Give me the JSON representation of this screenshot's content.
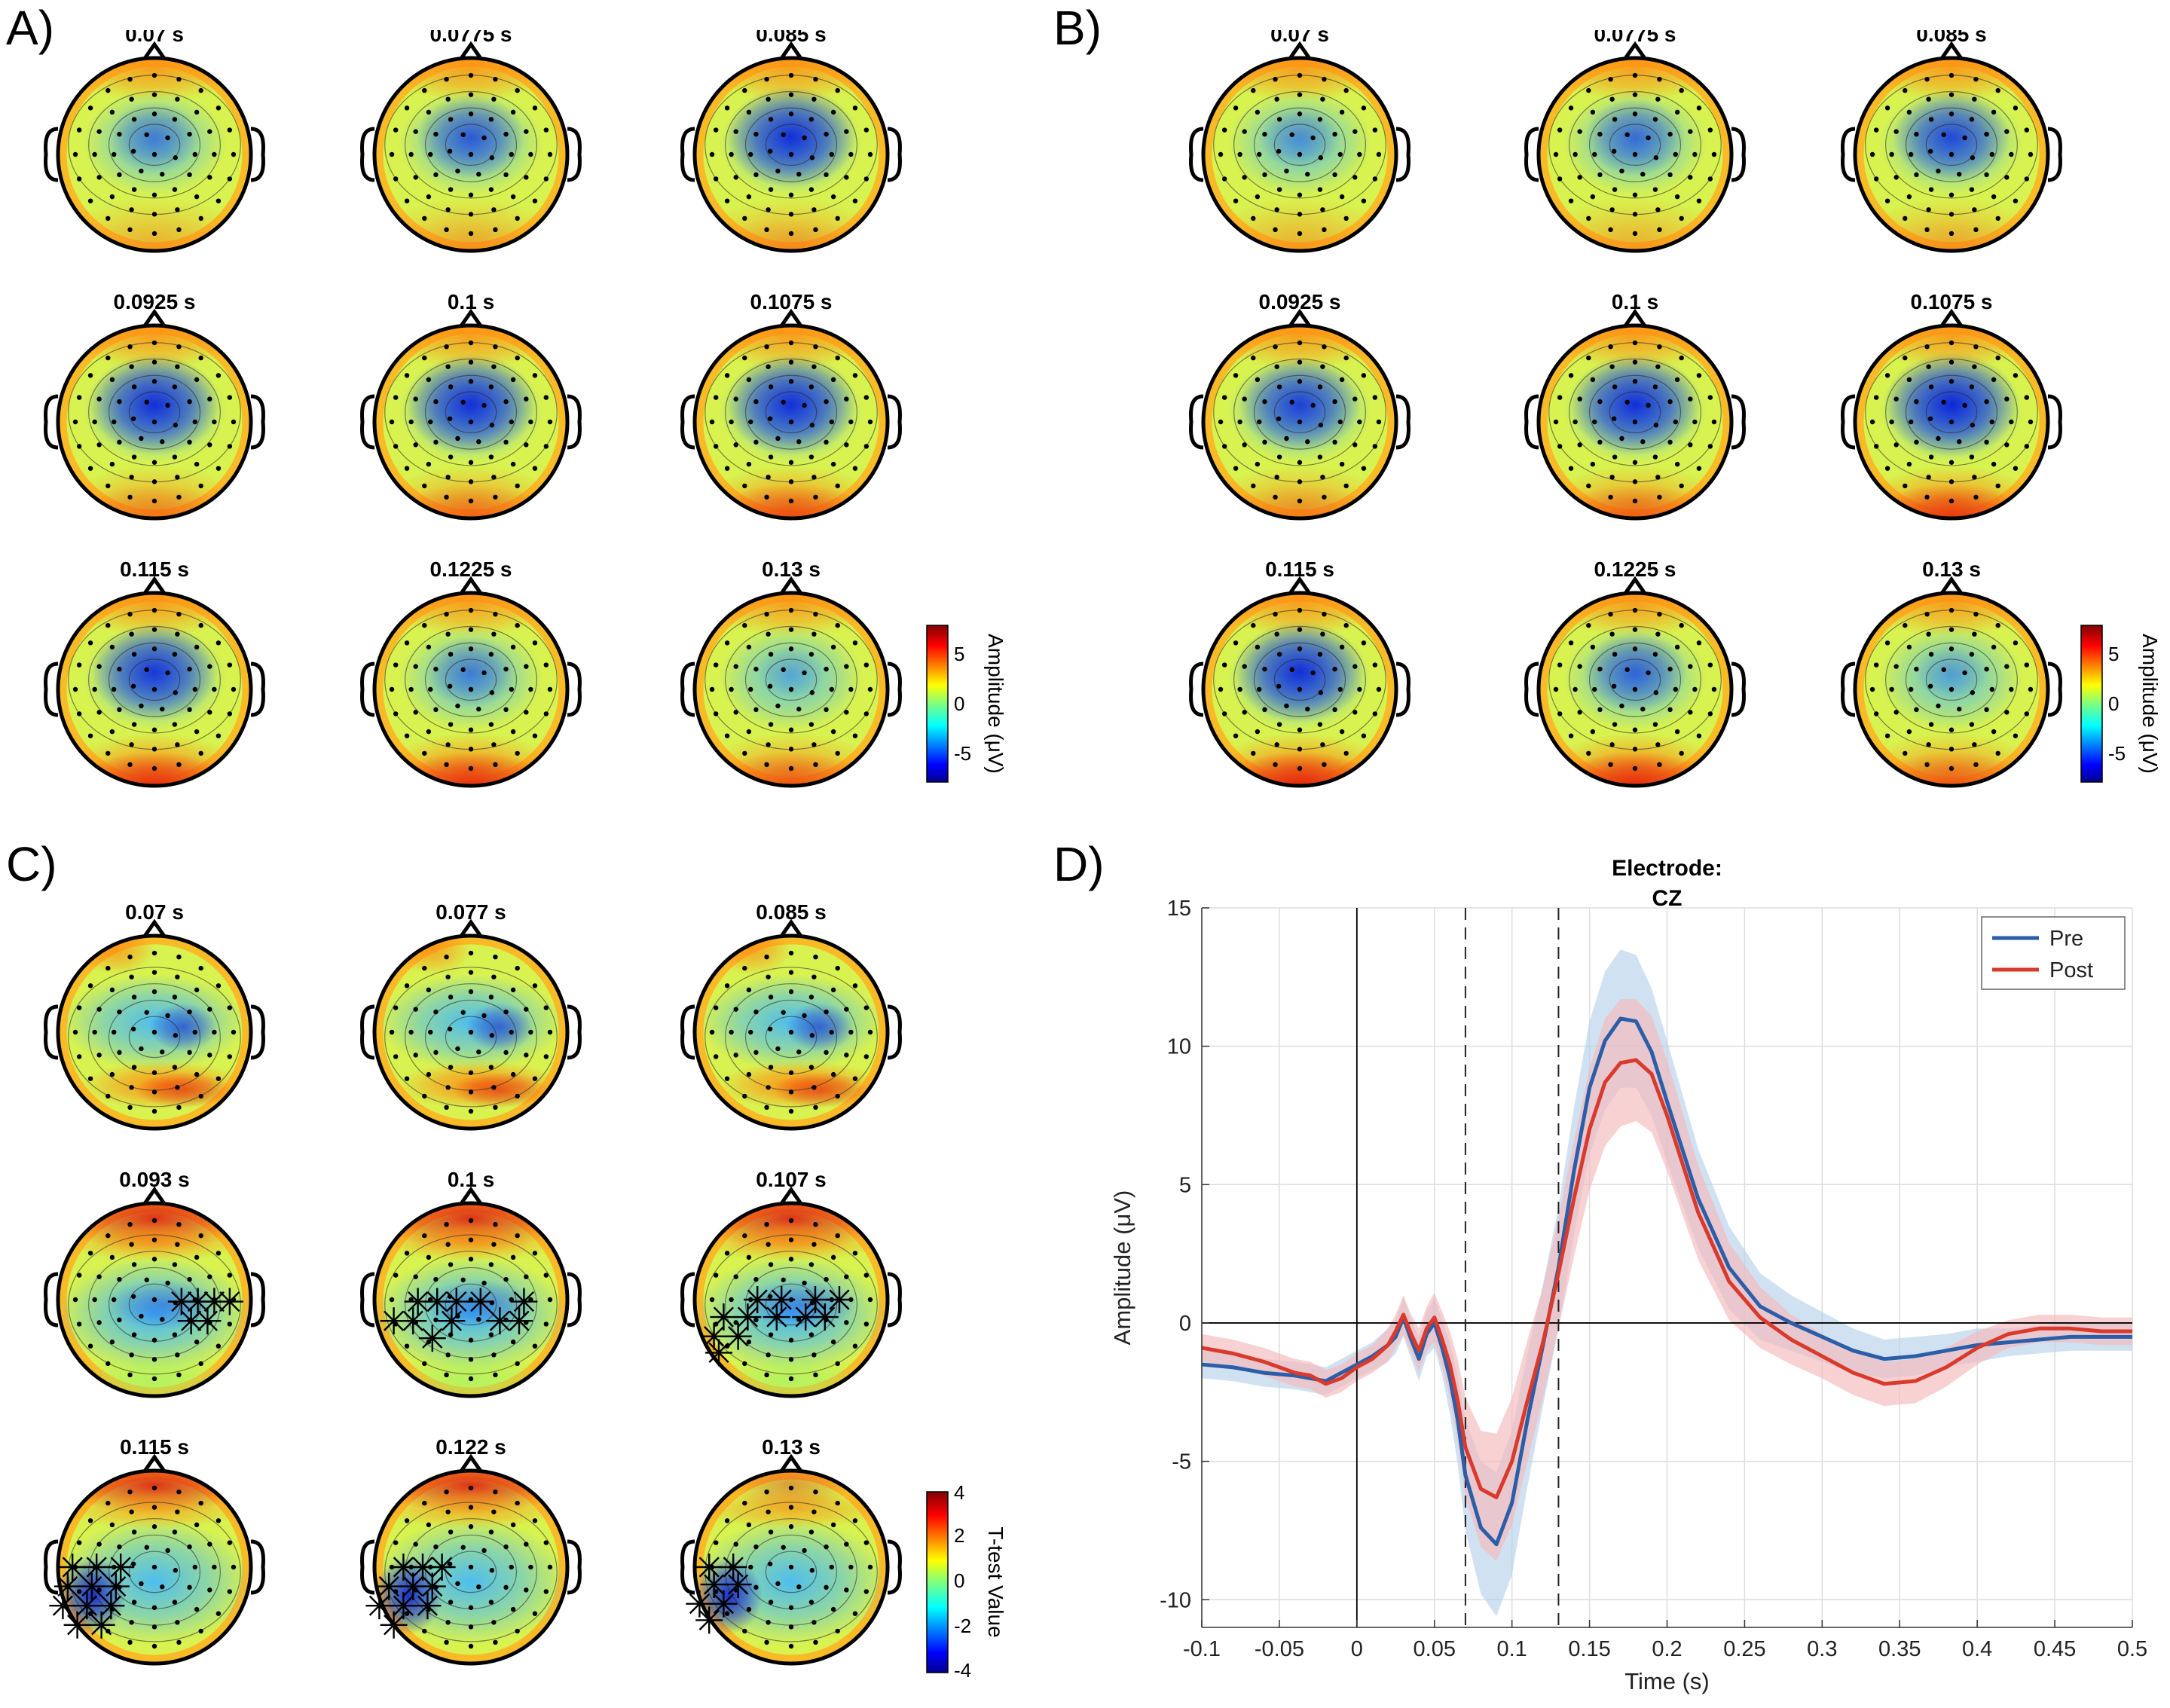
{
  "panels": {
    "A": {
      "letter": "A)",
      "times": [
        "0.07 s",
        "0.0775 s",
        "0.085 s",
        "0.0925 s",
        "0.1 s",
        "0.1075 s",
        "0.115 s",
        "0.1225 s",
        "0.13 s"
      ],
      "neg_strength": [
        0.45,
        0.65,
        0.9,
        0.9,
        0.9,
        0.9,
        0.85,
        0.45,
        0.2
      ],
      "post_strength": [
        0.1,
        0.15,
        0.2,
        0.35,
        0.45,
        0.65,
        0.85,
        0.85,
        0.55
      ],
      "colorbar": {
        "label": "Amplitude (μV)",
        "ticks": [
          "5",
          "0",
          "-5"
        ]
      }
    },
    "B": {
      "letter": "B)",
      "times": [
        "0.07 s",
        "0.0775 s",
        "0.085 s",
        "0.0925 s",
        "0.1 s",
        "0.1075 s",
        "0.115 s",
        "0.1225 s",
        "0.13 s"
      ],
      "neg_strength": [
        0.35,
        0.55,
        0.75,
        0.8,
        0.9,
        0.95,
        0.9,
        0.6,
        0.25
      ],
      "post_strength": [
        0.1,
        0.1,
        0.15,
        0.3,
        0.5,
        0.8,
        0.95,
        0.9,
        0.55
      ],
      "colorbar": {
        "label": "Amplitude (μV)",
        "ticks": [
          "5",
          "0",
          "-5"
        ]
      }
    },
    "C": {
      "letter": "C)",
      "times": [
        "0.07 s",
        "0.077 s",
        "0.085 s",
        "0.093 s",
        "0.1 s",
        "0.107 s",
        "0.115 s",
        "0.122 s",
        "0.13 s"
      ],
      "colorbar": {
        "label": "T-test Value",
        "ticks": [
          "4",
          "2",
          "0",
          "-2",
          "-4"
        ]
      }
    },
    "D": {
      "letter": "D)"
    }
  },
  "chart_data": {
    "type": "line",
    "title": "Electrode:\nCZ",
    "title_lines": [
      "Electrode:",
      "CZ"
    ],
    "xlabel": "Time (s)",
    "ylabel": "Amplitude (μV)",
    "xlim": [
      -0.1,
      0.5
    ],
    "ylim": [
      -11,
      15
    ],
    "xticks": [
      -0.1,
      -0.05,
      0,
      0.05,
      0.1,
      0.15,
      0.2,
      0.25,
      0.3,
      0.35,
      0.4,
      0.45,
      0.5
    ],
    "xtick_labels": [
      "-0.1",
      "-0.05",
      "0",
      "0.05",
      "0.1",
      "0.15",
      "0.2",
      "0.25",
      "0.3",
      "0.35",
      "0.4",
      "0.45",
      "0.5"
    ],
    "yticks": [
      -10,
      -5,
      0,
      5,
      10,
      15
    ],
    "ytick_labels": [
      "-10",
      "-5",
      "0",
      "5",
      "10",
      "15"
    ],
    "grid": true,
    "legend_position": "top-right",
    "vlines_dashed": [
      0.07,
      0.13
    ],
    "series": [
      {
        "name": "Pre",
        "color": "#2a5ea8",
        "band_color": "#b7d3ea",
        "x": [
          -0.1,
          -0.08,
          -0.06,
          -0.04,
          -0.03,
          -0.02,
          -0.01,
          0.0,
          0.01,
          0.02,
          0.025,
          0.03,
          0.035,
          0.04,
          0.045,
          0.05,
          0.055,
          0.06,
          0.065,
          0.07,
          0.08,
          0.09,
          0.1,
          0.11,
          0.12,
          0.13,
          0.14,
          0.15,
          0.16,
          0.17,
          0.18,
          0.19,
          0.2,
          0.22,
          0.24,
          0.26,
          0.28,
          0.3,
          0.32,
          0.34,
          0.36,
          0.38,
          0.4,
          0.42,
          0.44,
          0.46,
          0.48,
          0.5
        ],
        "y": [
          -1.5,
          -1.6,
          -1.8,
          -1.9,
          -2.0,
          -2.1,
          -1.8,
          -1.5,
          -1.2,
          -0.8,
          -0.5,
          0.2,
          -0.6,
          -1.3,
          -0.4,
          0.0,
          -0.9,
          -2.0,
          -3.5,
          -5.5,
          -7.4,
          -8.0,
          -6.5,
          -3.5,
          -0.8,
          2.0,
          5.5,
          8.5,
          10.2,
          11.0,
          10.9,
          9.8,
          8.0,
          4.5,
          2.0,
          0.6,
          0.0,
          -0.5,
          -1.0,
          -1.3,
          -1.2,
          -1.0,
          -0.8,
          -0.7,
          -0.6,
          -0.5,
          -0.5,
          -0.5
        ],
        "band": [
          0.5,
          0.5,
          0.5,
          0.5,
          0.5,
          0.5,
          0.5,
          0.5,
          0.5,
          0.6,
          0.6,
          0.7,
          0.7,
          0.8,
          0.8,
          0.9,
          1.0,
          1.3,
          1.6,
          2.0,
          2.4,
          2.6,
          2.6,
          2.4,
          2.2,
          2.2,
          2.3,
          2.4,
          2.5,
          2.5,
          2.4,
          2.3,
          2.2,
          1.8,
          1.5,
          1.2,
          1.0,
          0.9,
          0.8,
          0.7,
          0.7,
          0.6,
          0.6,
          0.5,
          0.5,
          0.5,
          0.5,
          0.5
        ]
      },
      {
        "name": "Post",
        "color": "#d93a2b",
        "band_color": "#f5b9bb",
        "x": [
          -0.1,
          -0.08,
          -0.06,
          -0.04,
          -0.03,
          -0.02,
          -0.01,
          0.0,
          0.01,
          0.02,
          0.025,
          0.03,
          0.035,
          0.04,
          0.045,
          0.05,
          0.055,
          0.06,
          0.065,
          0.07,
          0.08,
          0.09,
          0.1,
          0.11,
          0.12,
          0.13,
          0.14,
          0.15,
          0.16,
          0.17,
          0.18,
          0.19,
          0.2,
          0.22,
          0.24,
          0.26,
          0.28,
          0.3,
          0.32,
          0.34,
          0.36,
          0.38,
          0.4,
          0.42,
          0.44,
          0.46,
          0.48,
          0.5
        ],
        "y": [
          -0.9,
          -1.1,
          -1.4,
          -1.8,
          -1.9,
          -2.2,
          -2.0,
          -1.6,
          -1.3,
          -0.8,
          -0.3,
          0.3,
          -0.4,
          -1.0,
          -0.2,
          0.2,
          -0.6,
          -1.5,
          -2.8,
          -4.5,
          -6.0,
          -6.3,
          -5.0,
          -2.8,
          -0.7,
          1.8,
          4.5,
          7.0,
          8.7,
          9.4,
          9.5,
          9.0,
          7.5,
          4.0,
          1.5,
          0.2,
          -0.6,
          -1.2,
          -1.8,
          -2.2,
          -2.1,
          -1.6,
          -0.9,
          -0.4,
          -0.2,
          -0.2,
          -0.3,
          -0.3
        ],
        "band": [
          0.5,
          0.5,
          0.5,
          0.5,
          0.5,
          0.5,
          0.5,
          0.5,
          0.5,
          0.6,
          0.6,
          0.7,
          0.7,
          0.8,
          0.8,
          0.9,
          1.0,
          1.2,
          1.5,
          1.8,
          2.1,
          2.3,
          2.3,
          2.2,
          2.0,
          2.0,
          2.1,
          2.2,
          2.3,
          2.3,
          2.2,
          2.1,
          2.0,
          1.7,
          1.4,
          1.1,
          0.9,
          0.8,
          0.8,
          0.8,
          0.8,
          0.7,
          0.6,
          0.5,
          0.5,
          0.5,
          0.5,
          0.5
        ]
      }
    ]
  }
}
